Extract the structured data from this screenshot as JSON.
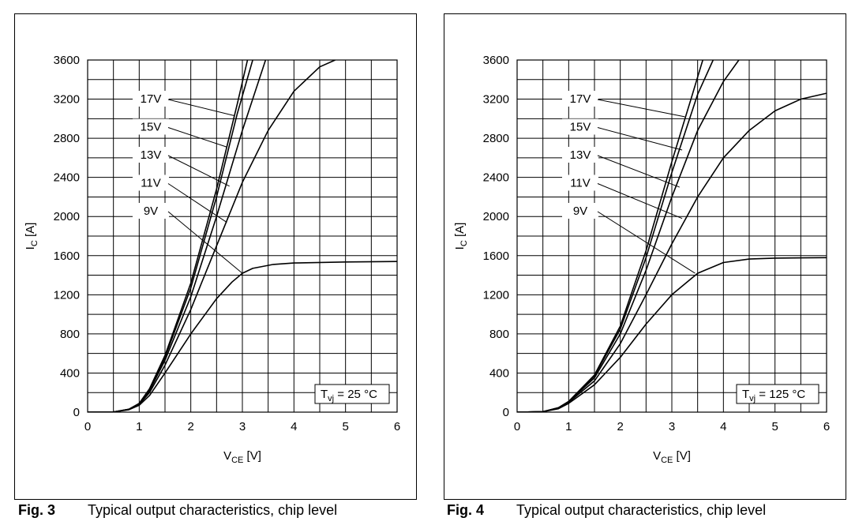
{
  "figures": [
    {
      "caption_label": "Fig. 3",
      "caption_text": "Typical output characteristics, chip level",
      "condition_label": {
        "prefix": "T",
        "sub": "vj",
        "suffix": " = 25 °C"
      }
    },
    {
      "caption_label": "Fig. 4",
      "caption_text": "Typical output characteristics, chip level",
      "condition_label": {
        "prefix": "T",
        "sub": "vj",
        "suffix": " = 125 °C"
      }
    }
  ],
  "chart_data": [
    {
      "type": "line",
      "title": "",
      "xlabel": {
        "main": "V",
        "sub": "CE",
        "unit": " [V]"
      },
      "ylabel": {
        "main": "I",
        "sub": "C",
        "unit": " [A]"
      },
      "xlim": [
        0,
        6
      ],
      "ylim": [
        0,
        3600
      ],
      "x_ticks": [
        "0",
        "1",
        "2",
        "3",
        "4",
        "5",
        "6"
      ],
      "y_ticks": [
        "0",
        "400",
        "800",
        "1200",
        "1600",
        "2000",
        "2400",
        "2800",
        "3200",
        "3600"
      ],
      "grid": true,
      "series": [
        {
          "name": "17V",
          "label_at": [
            2.85,
            3030
          ],
          "points": [
            [
              0,
              0
            ],
            [
              0.5,
              2
            ],
            [
              0.8,
              30
            ],
            [
              1.0,
              90
            ],
            [
              1.2,
              240
            ],
            [
              1.5,
              580
            ],
            [
              2.0,
              1320
            ],
            [
              2.5,
              2280
            ],
            [
              2.9,
              3150
            ],
            [
              3.1,
              3600
            ]
          ]
        },
        {
          "name": "15V",
          "label_at": [
            2.7,
            2710
          ],
          "points": [
            [
              0,
              0
            ],
            [
              0.5,
              2
            ],
            [
              0.8,
              30
            ],
            [
              1.0,
              88
            ],
            [
              1.2,
              230
            ],
            [
              1.5,
              560
            ],
            [
              2.0,
              1270
            ],
            [
              2.5,
              2200
            ],
            [
              2.9,
              3050
            ],
            [
              3.2,
              3600
            ]
          ]
        },
        {
          "name": "13V",
          "label_at": [
            2.75,
            2310
          ],
          "points": [
            [
              0,
              0
            ],
            [
              0.5,
              2
            ],
            [
              0.8,
              28
            ],
            [
              1.0,
              85
            ],
            [
              1.2,
              220
            ],
            [
              1.5,
              530
            ],
            [
              2.0,
              1180
            ],
            [
              2.5,
              2000
            ],
            [
              3.0,
              2880
            ],
            [
              3.45,
              3600
            ]
          ]
        },
        {
          "name": "11V",
          "label_at": [
            2.7,
            1940
          ],
          "points": [
            [
              0,
              0
            ],
            [
              0.5,
              2
            ],
            [
              0.8,
              28
            ],
            [
              1.0,
              80
            ],
            [
              1.2,
              200
            ],
            [
              1.5,
              480
            ],
            [
              2.0,
              1050
            ],
            [
              2.5,
              1700
            ],
            [
              3.0,
              2350
            ],
            [
              3.5,
              2880
            ],
            [
              4.0,
              3280
            ],
            [
              4.5,
              3530
            ],
            [
              4.8,
              3600
            ]
          ]
        },
        {
          "name": "9V",
          "label_at": [
            3.0,
            1420
          ],
          "points": [
            [
              0,
              0
            ],
            [
              0.5,
              2
            ],
            [
              0.8,
              25
            ],
            [
              1.0,
              70
            ],
            [
              1.2,
              170
            ],
            [
              1.5,
              400
            ],
            [
              2.0,
              800
            ],
            [
              2.5,
              1160
            ],
            [
              2.8,
              1330
            ],
            [
              3.0,
              1420
            ],
            [
              3.2,
              1470
            ],
            [
              3.6,
              1510
            ],
            [
              4.0,
              1525
            ],
            [
              5.0,
              1535
            ],
            [
              6.0,
              1540
            ]
          ]
        }
      ]
    },
    {
      "type": "line",
      "title": "",
      "xlabel": {
        "main": "V",
        "sub": "CE",
        "unit": " [V]"
      },
      "ylabel": {
        "main": "I",
        "sub": "C",
        "unit": " [A]"
      },
      "xlim": [
        0,
        6
      ],
      "ylim": [
        0,
        3600
      ],
      "x_ticks": [
        "0",
        "1",
        "2",
        "3",
        "4",
        "5",
        "6"
      ],
      "y_ticks": [
        "0",
        "400",
        "800",
        "1200",
        "1600",
        "2000",
        "2400",
        "2800",
        "3200",
        "3600"
      ],
      "grid": true,
      "series": [
        {
          "name": "17V",
          "label_at": [
            3.25,
            3020
          ],
          "points": [
            [
              0,
              0
            ],
            [
              0.5,
              5
            ],
            [
              0.8,
              45
            ],
            [
              1.0,
              110
            ],
            [
              1.5,
              380
            ],
            [
              2.0,
              880
            ],
            [
              2.5,
              1650
            ],
            [
              3.0,
              2560
            ],
            [
              3.4,
              3250
            ],
            [
              3.6,
              3600
            ]
          ]
        },
        {
          "name": "15V",
          "label_at": [
            3.2,
            2680
          ],
          "points": [
            [
              0,
              0
            ],
            [
              0.5,
              5
            ],
            [
              0.8,
              45
            ],
            [
              1.0,
              108
            ],
            [
              1.5,
              370
            ],
            [
              2.0,
              850
            ],
            [
              2.5,
              1580
            ],
            [
              3.0,
              2450
            ],
            [
              3.5,
              3250
            ],
            [
              3.8,
              3600
            ]
          ]
        },
        {
          "name": "13V",
          "label_at": [
            3.15,
            2300
          ],
          "points": [
            [
              0,
              0
            ],
            [
              0.5,
              5
            ],
            [
              0.8,
              42
            ],
            [
              1.0,
              105
            ],
            [
              1.5,
              350
            ],
            [
              2.0,
              800
            ],
            [
              2.5,
              1450
            ],
            [
              3.0,
              2200
            ],
            [
              3.5,
              2880
            ],
            [
              4.0,
              3380
            ],
            [
              4.3,
              3600
            ]
          ]
        },
        {
          "name": "11V",
          "label_at": [
            3.2,
            1980
          ],
          "points": [
            [
              0,
              0
            ],
            [
              0.5,
              5
            ],
            [
              0.8,
              40
            ],
            [
              1.0,
              100
            ],
            [
              1.5,
              320
            ],
            [
              2.0,
              700
            ],
            [
              2.5,
              1200
            ],
            [
              3.0,
              1720
            ],
            [
              3.5,
              2200
            ],
            [
              4.0,
              2600
            ],
            [
              4.5,
              2880
            ],
            [
              5.0,
              3080
            ],
            [
              5.5,
              3200
            ],
            [
              6.0,
              3260
            ]
          ]
        },
        {
          "name": "9V",
          "label_at": [
            3.45,
            1420
          ],
          "points": [
            [
              0,
              0
            ],
            [
              0.5,
              5
            ],
            [
              0.8,
              35
            ],
            [
              1.0,
              90
            ],
            [
              1.5,
              280
            ],
            [
              2.0,
              560
            ],
            [
              2.5,
              900
            ],
            [
              3.0,
              1200
            ],
            [
              3.5,
              1420
            ],
            [
              4.0,
              1530
            ],
            [
              4.5,
              1565
            ],
            [
              5.0,
              1575
            ],
            [
              6.0,
              1580
            ]
          ]
        }
      ]
    }
  ]
}
